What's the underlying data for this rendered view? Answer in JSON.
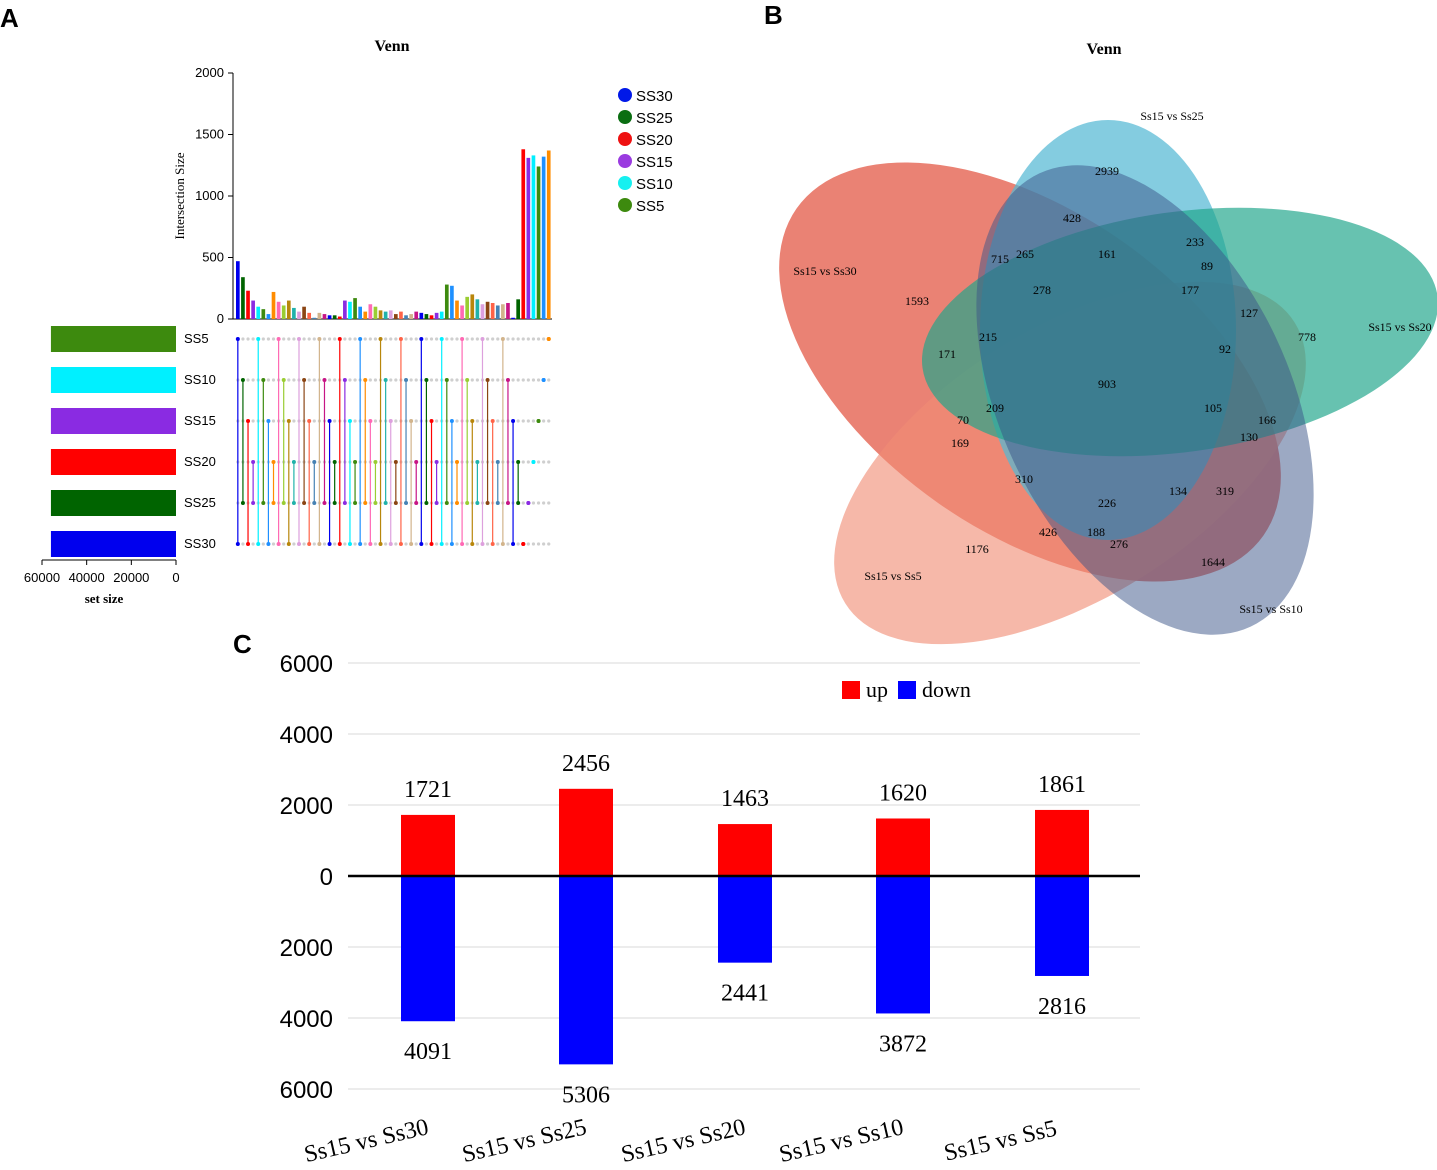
{
  "panels": {
    "a": "A",
    "b": "B",
    "c": "C"
  },
  "chart_data": [
    {
      "type": "upset",
      "title": "Venn",
      "ylabel": "Intersection Size",
      "yticks": [
        0,
        500,
        1000,
        1500,
        2000
      ],
      "ylim": [
        0,
        2000
      ],
      "set_size_label": "set size",
      "set_size_ticks": [
        60000,
        40000,
        20000,
        0
      ],
      "sets": [
        {
          "name": "SS5",
          "color": "#3d8a0e",
          "size": 56000
        },
        {
          "name": "SS10",
          "color": "#00f0ff",
          "size": 56000
        },
        {
          "name": "SS15",
          "color": "#8a2be2",
          "size": 56000
        },
        {
          "name": "SS20",
          "color": "#ff0000",
          "size": 56000
        },
        {
          "name": "SS25",
          "color": "#006400",
          "size": 56000
        },
        {
          "name": "SS30",
          "color": "#0000ee",
          "size": 56000
        }
      ],
      "legend": [
        {
          "label": "SS30",
          "color": "#0018e8"
        },
        {
          "label": "SS25",
          "color": "#0b6e12"
        },
        {
          "label": "SS20",
          "color": "#ee1111"
        },
        {
          "label": "SS15",
          "color": "#9a3be0"
        },
        {
          "label": "SS10",
          "color": "#16f0f0"
        },
        {
          "label": "SS5",
          "color": "#3d8a0e"
        }
      ],
      "intersections": [
        470,
        340,
        230,
        150,
        100,
        80,
        40,
        220,
        140,
        110,
        150,
        90,
        60,
        100,
        50,
        10,
        50,
        40,
        30,
        30,
        20,
        150,
        140,
        170,
        100,
        60,
        120,
        100,
        70,
        60,
        70,
        40,
        60,
        30,
        40,
        60,
        50,
        40,
        30,
        50,
        60,
        280,
        270,
        150,
        110,
        180,
        200,
        160,
        120,
        140,
        130,
        110,
        120,
        130,
        10,
        160,
        1380,
        1310,
        1330,
        1240,
        1320,
        1370
      ]
    },
    {
      "type": "venn",
      "title": "Venn",
      "sets": [
        {
          "name": "Ss15 vs Ss30",
          "color": "#e2523f"
        },
        {
          "name": "Ss15 vs Ss25",
          "color": "#55b9d4"
        },
        {
          "name": "Ss15 vs Ss20",
          "color": "#1fa58a"
        },
        {
          "name": "Ss15 vs Ss10",
          "color": "#3a5487"
        },
        {
          "name": "Ss15 vs Ss5",
          "color": "#f18c74"
        }
      ],
      "region_values": [
        "2939",
        "428",
        "233",
        "161",
        "715",
        "265",
        "89",
        "177",
        "1593",
        "278",
        "127",
        "778",
        "215",
        "171",
        "92",
        "903",
        "209",
        "105",
        "70",
        "166",
        "169",
        "130",
        "310",
        "134",
        "319",
        "226",
        "426",
        "188",
        "276",
        "1176",
        "1644"
      ]
    },
    {
      "type": "bar",
      "categories": [
        "Ss15 vs Ss30",
        "Ss15 vs Ss25",
        "Ss15 vs Ss20",
        "Ss15 vs Ss10",
        "Ss15 vs Ss5"
      ],
      "series": [
        {
          "name": "up",
          "color": "#ff0000",
          "values": [
            1721,
            2456,
            1463,
            1620,
            1861
          ]
        },
        {
          "name": "down",
          "color": "#0000ff",
          "values": [
            4091,
            5306,
            2441,
            3872,
            2816
          ]
        }
      ],
      "yticks": [
        "6000",
        "4000",
        "2000",
        "0",
        "2000",
        "4000",
        "6000"
      ],
      "ylim": [
        -6000,
        6000
      ]
    }
  ]
}
